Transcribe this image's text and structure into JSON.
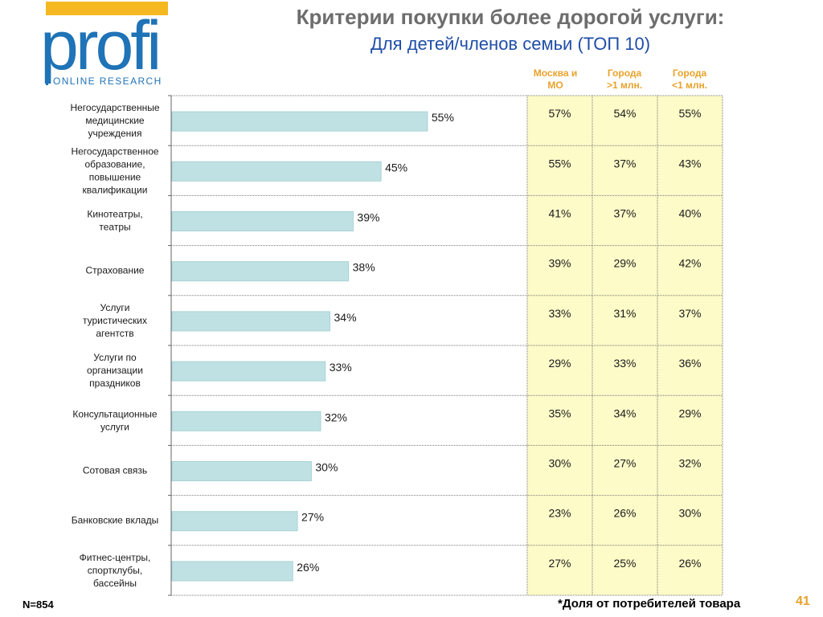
{
  "logo": {
    "word": "profi",
    "sub": "ONLINE RESEARCH"
  },
  "title": "Критерии покупки более дорогой услуги:",
  "subtitle": "Для детей/членов семьи (ТОП 10)",
  "columns": [
    {
      "line1": "Москва и",
      "line2": "МО"
    },
    {
      "line1": "Города",
      "line2": ">1 млн."
    },
    {
      "line1": "Города",
      "line2": "<1 млн."
    }
  ],
  "colors": {
    "bar": "#bfe1e3",
    "bar_edge": "#a9d3d6",
    "table_bg": "#fdfbc8",
    "accent": "#e8a22a",
    "title_blue": "#1f4ea8"
  },
  "chart_data": {
    "type": "bar",
    "orientation": "horizontal",
    "categories": [
      [
        "Негосударственные",
        "медицинские",
        "учреждения"
      ],
      [
        "Негосударственное",
        "образование,",
        "повышение",
        "квалификации"
      ],
      [
        "Кинотеатры,",
        "театры"
      ],
      [
        "Страхование"
      ],
      [
        "Услуги",
        "туристических",
        "агентств"
      ],
      [
        "Услуги по",
        "организации",
        "праздников"
      ],
      [
        "Консультационные",
        "услуги"
      ],
      [
        "Сотовая связь"
      ],
      [
        "Банковские вклады"
      ],
      [
        "Фитнес-центры,",
        "спортклубы,",
        "бассейны"
      ]
    ],
    "values": [
      55,
      45,
      39,
      38,
      34,
      33,
      32,
      30,
      27,
      26
    ],
    "value_labels": [
      "55%",
      "45%",
      "39%",
      "38%",
      "34%",
      "33%",
      "32%",
      "30%",
      "27%",
      "26%"
    ],
    "xlim": [
      0,
      100
    ],
    "table": [
      [
        "57%",
        "54%",
        "55%"
      ],
      [
        "55%",
        "37%",
        "43%"
      ],
      [
        "41%",
        "37%",
        "40%"
      ],
      [
        "39%",
        "29%",
        "42%"
      ],
      [
        "33%",
        "31%",
        "37%"
      ],
      [
        "29%",
        "33%",
        "36%"
      ],
      [
        "35%",
        "34%",
        "29%"
      ],
      [
        "30%",
        "27%",
        "32%"
      ],
      [
        "23%",
        "26%",
        "30%"
      ],
      [
        "27%",
        "25%",
        "26%"
      ]
    ]
  },
  "sample_size": "N=854",
  "footnote": "*Доля  от потребителей товара",
  "page_number": "41"
}
